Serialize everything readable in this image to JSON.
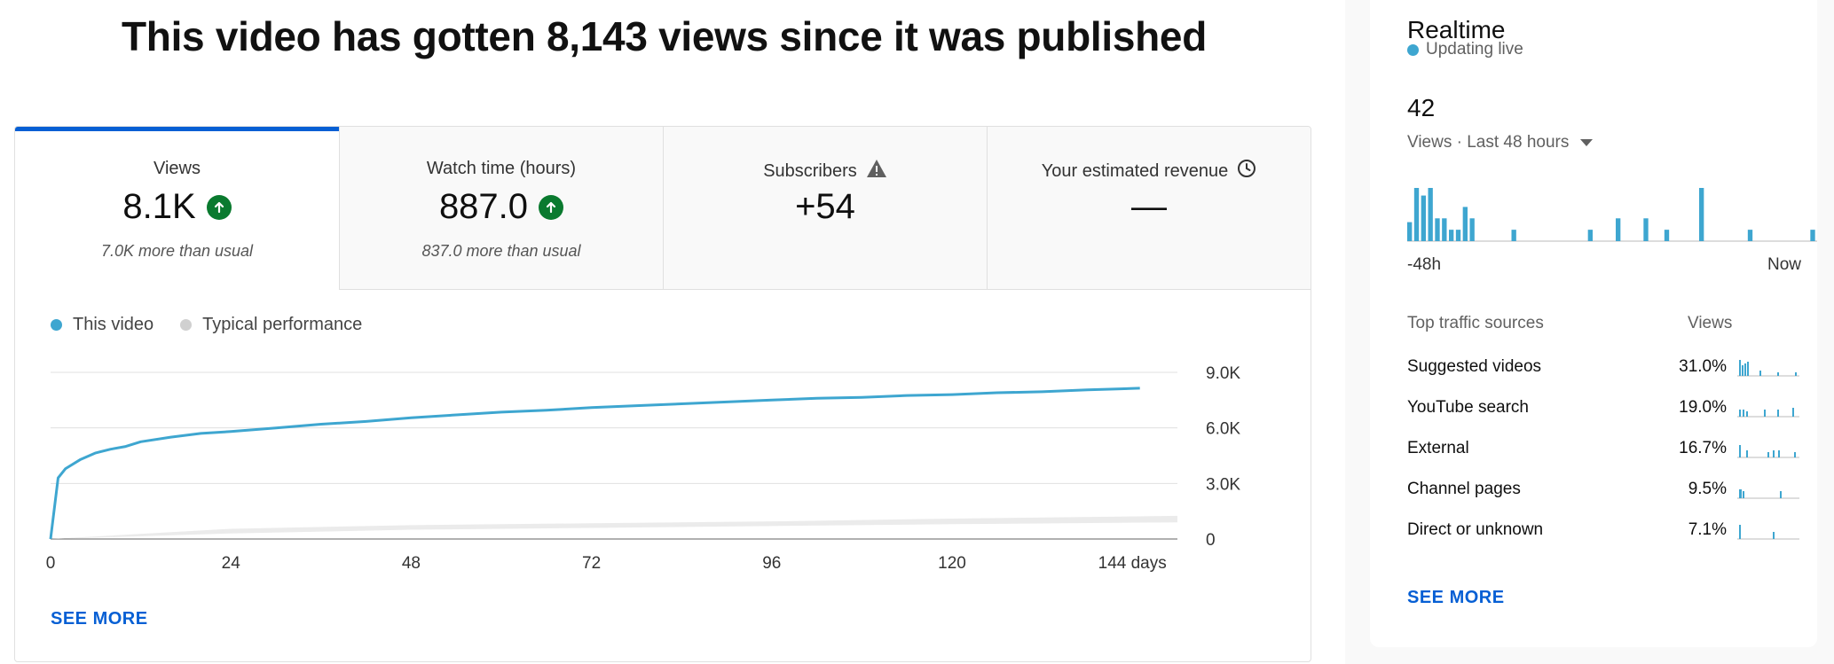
{
  "headline": "This video has gotten 8,143 views since it was published",
  "tabs": [
    {
      "label": "Views",
      "value": "8.1K",
      "note": "7.0K more than usual"
    },
    {
      "label": "Watch time (hours)",
      "value": "887.0",
      "note": "837.0 more than usual"
    },
    {
      "label": "Subscribers",
      "value": "+54",
      "note": ""
    },
    {
      "label": "Your estimated revenue",
      "value": "—",
      "note": ""
    }
  ],
  "legend": {
    "this_video": "This video",
    "typical": "Typical performance"
  },
  "see_more_left": "SEE MORE",
  "colors": {
    "accent": "#3ea6d0",
    "typical": "#d0d0d0",
    "link": "#065fd4",
    "up": "#0a7a2f"
  },
  "chart_data": {
    "type": "line",
    "xlabel": "",
    "ylabel": "",
    "x_ticks": [
      "0",
      "24",
      "48",
      "72",
      "96",
      "120",
      "144 days"
    ],
    "y_ticks": [
      "0",
      "3.0K",
      "6.0K",
      "9.0K"
    ],
    "xlim": [
      0,
      150
    ],
    "ylim": [
      0,
      9000
    ],
    "series": [
      {
        "name": "This video",
        "x": [
          0,
          1,
          2,
          4,
          6,
          8,
          10,
          12,
          16,
          20,
          24,
          30,
          36,
          42,
          48,
          54,
          60,
          66,
          72,
          78,
          84,
          90,
          96,
          102,
          108,
          114,
          120,
          126,
          132,
          138,
          142,
          145
        ],
        "y": [
          0,
          3300,
          3800,
          4300,
          4650,
          4850,
          5000,
          5250,
          5500,
          5700,
          5800,
          6000,
          6200,
          6350,
          6550,
          6700,
          6850,
          6950,
          7100,
          7200,
          7300,
          7400,
          7500,
          7600,
          7650,
          7750,
          7800,
          7900,
          7950,
          8050,
          8100,
          8143
        ]
      },
      {
        "name": "Typical performance",
        "x": [
          0,
          24,
          48,
          72,
          96,
          120,
          150
        ],
        "y_low": [
          0,
          300,
          500,
          600,
          700,
          800,
          900
        ],
        "y_high": [
          0,
          550,
          750,
          850,
          950,
          1100,
          1250
        ]
      }
    ]
  },
  "realtime": {
    "title": "Realtime",
    "status": "Updating live",
    "count": "42",
    "period": "Views · Last 48 hours",
    "axis_start": "-48h",
    "axis_end": "Now",
    "bars": [
      5,
      14,
      12,
      14,
      6,
      6,
      3,
      3,
      9,
      6,
      0,
      0,
      0,
      0,
      0,
      3,
      0,
      0,
      0,
      0,
      0,
      0,
      0,
      0,
      0,
      0,
      3,
      0,
      0,
      0,
      6,
      0,
      0,
      0,
      6,
      0,
      0,
      3,
      0,
      0,
      0,
      0,
      14,
      0,
      0,
      0,
      0,
      0,
      0,
      3,
      0,
      0,
      0,
      0,
      0,
      0,
      0,
      0,
      3,
      3
    ]
  },
  "traffic": {
    "heading": "Top traffic sources",
    "views_heading": "Views",
    "rows": [
      {
        "name": "Suggested videos",
        "pct": "31.0%"
      },
      {
        "name": "YouTube search",
        "pct": "19.0%"
      },
      {
        "name": "External",
        "pct": "16.7%"
      },
      {
        "name": "Channel pages",
        "pct": "9.5%"
      },
      {
        "name": "Direct or unknown",
        "pct": "7.1%"
      }
    ]
  },
  "see_more_right": "SEE MORE"
}
